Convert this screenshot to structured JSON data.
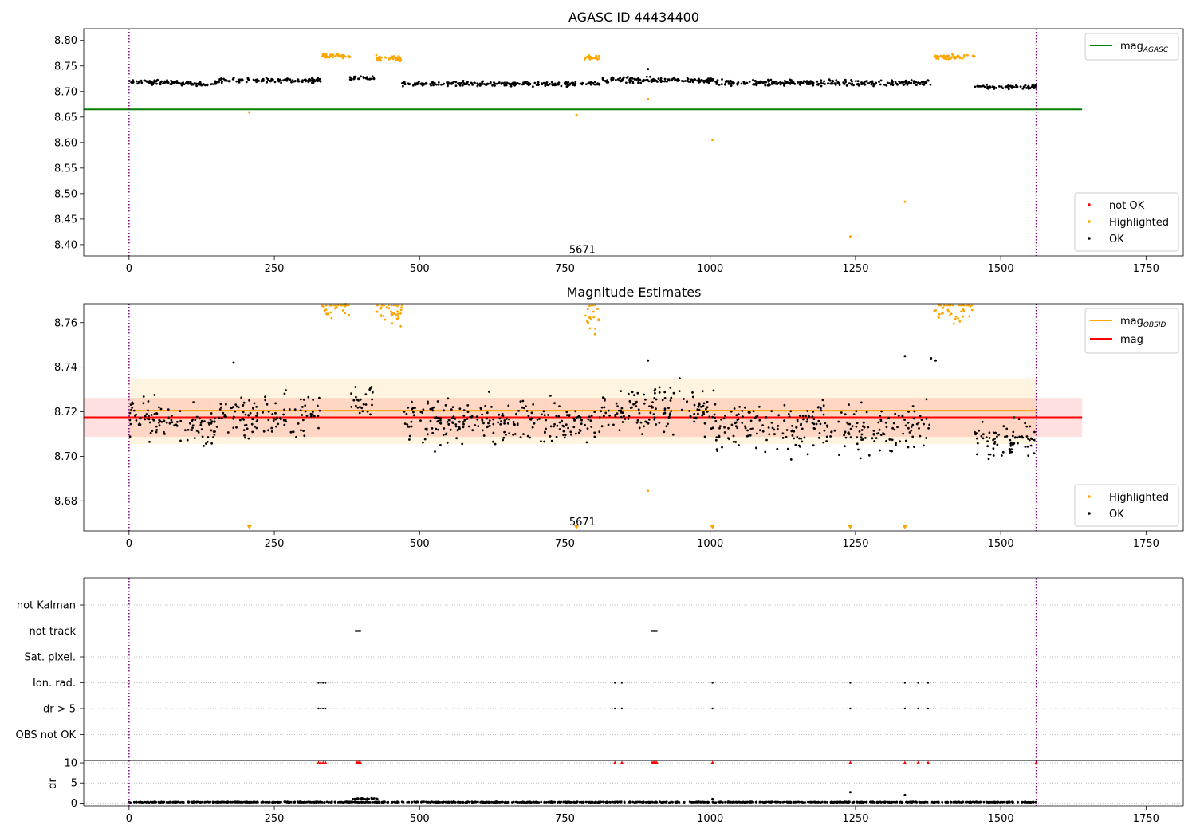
{
  "figure": {
    "background": "#ffffff"
  },
  "chart_data": [
    {
      "id": "top",
      "type": "scatter",
      "title": "AGASC ID 44434400",
      "xlim": [
        -78,
        1814
      ],
      "ylim": [
        8.378,
        8.823
      ],
      "xticks": [
        0,
        250,
        500,
        750,
        1000,
        1250,
        1500,
        1750
      ],
      "yticks": [
        8.4,
        8.45,
        8.5,
        8.55,
        8.6,
        8.65,
        8.7,
        8.75,
        8.8
      ],
      "ytick_format": 2,
      "vlines": [
        0,
        1561
      ],
      "vline_color": "#800080",
      "obs_annotation": {
        "text": "5671",
        "x": 780,
        "y": 8.39
      },
      "hlines": [
        {
          "name": "mag_AGASC",
          "y": 8.665,
          "x0": -78,
          "x1": 1640,
          "color": "#008000"
        }
      ],
      "legend_lines": {
        "position": "top-right",
        "entries": [
          {
            "label": "mag",
            "sub": "AGASC",
            "color": "#008000"
          }
        ]
      },
      "legend_points": {
        "position": "lower-right",
        "entries": [
          {
            "label": "not OK",
            "color": "#ff0000"
          },
          {
            "label": "Highlighted",
            "color": "#ffa500"
          },
          {
            "label": "OK",
            "color": "#000000"
          }
        ]
      },
      "series": [
        {
          "name": "OK",
          "color": "#000000",
          "segments": [
            {
              "x0": 0,
              "x1": 152,
              "n": 110,
              "base": 8.719,
              "spread": 0.004,
              "trend": -0.004
            },
            {
              "x0": 154,
              "x1": 330,
              "n": 120,
              "base": 8.722,
              "spread": 0.004
            },
            {
              "x0": 380,
              "x1": 425,
              "n": 25,
              "base": 8.727,
              "spread": 0.004
            },
            {
              "x0": 470,
              "x1": 770,
              "n": 220,
              "base": 8.715,
              "spread": 0.004
            },
            {
              "x0": 772,
              "x1": 810,
              "n": 22,
              "base": 8.715,
              "spread": 0.003
            },
            {
              "x0": 812,
              "x1": 1010,
              "n": 150,
              "base": 8.722,
              "spread": 0.005
            },
            {
              "x0": 1010,
              "x1": 1380,
              "n": 260,
              "base": 8.717,
              "spread": 0.005
            },
            {
              "x0": 1455,
              "x1": 1561,
              "n": 75,
              "base": 8.709,
              "spread": 0.004
            }
          ],
          "points": [
            [
              893,
              8.744
            ]
          ]
        },
        {
          "name": "Highlighted",
          "color": "#ffa500",
          "segments": [
            {
              "x0": 332,
              "x1": 380,
              "n": 45,
              "base": 8.77,
              "spread": 0.004
            },
            {
              "x0": 425,
              "x1": 470,
              "n": 40,
              "base": 8.765,
              "spread": 0.005
            },
            {
              "x0": 784,
              "x1": 810,
              "n": 22,
              "base": 8.766,
              "spread": 0.005
            },
            {
              "x0": 1385,
              "x1": 1455,
              "n": 55,
              "base": 8.768,
              "spread": 0.004
            }
          ],
          "points": [
            [
              207,
              8.659
            ],
            [
              770,
              8.654
            ],
            [
              893,
              8.685
            ],
            [
              1004,
              8.605
            ],
            [
              1241,
              8.416
            ],
            [
              1335,
              8.484
            ]
          ]
        }
      ]
    },
    {
      "id": "mid",
      "type": "scatter",
      "title": "Magnitude Estimates",
      "xlim": [
        -78,
        1814
      ],
      "ylim": [
        8.6665,
        8.7685
      ],
      "xticks": [
        0,
        250,
        500,
        750,
        1000,
        1250,
        1500,
        1750
      ],
      "yticks": [
        8.68,
        8.7,
        8.72,
        8.74,
        8.76
      ],
      "ytick_format": 2,
      "vlines": [
        0,
        1561
      ],
      "vline_color": "#800080",
      "obs_annotation": {
        "text": "5671",
        "x": 780,
        "y": 8.6705
      },
      "bands": [
        {
          "x0": 0,
          "x1": 1561,
          "y0": 8.7055,
          "y1": 8.735,
          "color": "#ffa500",
          "opacity": 0.12
        },
        {
          "x0": -78,
          "x1": 1640,
          "y0": 8.7087,
          "y1": 8.7262,
          "color": "#ff0000",
          "opacity": 0.12
        }
      ],
      "hlines": [
        {
          "name": "mag_OBSID",
          "y": 8.7205,
          "x0": 0,
          "x1": 1561,
          "color": "#ffa500"
        },
        {
          "name": "mag",
          "y": 8.7175,
          "x0": -78,
          "x1": 1640,
          "color": "#ff0000"
        }
      ],
      "legend_lines": {
        "position": "top-right",
        "entries": [
          {
            "label": "mag",
            "sub": "OBSID",
            "color": "#ffa500"
          },
          {
            "label": "mag",
            "sub": "",
            "color": "#ff0000"
          }
        ]
      },
      "legend_points": {
        "position": "lower-right",
        "entries": [
          {
            "label": "Highlighted",
            "color": "#ffa500"
          },
          {
            "label": "OK",
            "color": "#000000"
          }
        ]
      },
      "series": [
        {
          "name": "OK",
          "color": "#000000",
          "segments": [
            {
              "x0": 0,
              "x1": 152,
              "n": 110,
              "base": 8.718,
              "spread": 0.007,
              "trend": -0.006
            },
            {
              "x0": 154,
              "x1": 330,
              "n": 120,
              "base": 8.719,
              "spread": 0.008
            },
            {
              "x0": 380,
              "x1": 425,
              "n": 25,
              "base": 8.725,
              "spread": 0.007
            },
            {
              "x0": 470,
              "x1": 770,
              "n": 220,
              "base": 8.715,
              "spread": 0.009
            },
            {
              "x0": 772,
              "x1": 810,
              "n": 22,
              "base": 8.714,
              "spread": 0.007
            },
            {
              "x0": 812,
              "x1": 1010,
              "n": 150,
              "base": 8.721,
              "spread": 0.009
            },
            {
              "x0": 1010,
              "x1": 1380,
              "n": 260,
              "base": 8.713,
              "spread": 0.01
            },
            {
              "x0": 1455,
              "x1": 1561,
              "n": 75,
              "base": 8.707,
              "spread": 0.007
            }
          ],
          "points": [
            [
              893,
              8.743
            ],
            [
              1335,
              8.745
            ],
            [
              1380,
              8.744
            ],
            [
              1388,
              8.743
            ],
            [
              180,
              8.742
            ]
          ]
        },
        {
          "name": "Highlighted",
          "color": "#ffa500",
          "segments": [
            {
              "x0": 332,
              "x1": 380,
              "n": 45,
              "base": 8.769,
              "spread": 0.006
            },
            {
              "x0": 425,
              "x1": 470,
              "n": 40,
              "base": 8.766,
              "spread": 0.008
            },
            {
              "x0": 784,
              "x1": 810,
              "n": 22,
              "base": 8.764,
              "spread": 0.008
            },
            {
              "x0": 1385,
              "x1": 1455,
              "n": 55,
              "base": 8.768,
              "spread": 0.007
            }
          ],
          "points": [
            [
              893,
              8.6845
            ]
          ]
        }
      ],
      "out_of_range_markers": {
        "color": "#ffa500",
        "x": [
          207,
          770,
          1004,
          1241,
          1335
        ]
      }
    },
    {
      "id": "flags",
      "type": "scatter",
      "xlim": [
        -78,
        1814
      ],
      "xticks": [
        0,
        250,
        500,
        750,
        1000,
        1250,
        1500,
        1750
      ],
      "vlines": [
        0,
        1561
      ],
      "vline_color": "#800080",
      "categories": [
        "not Kalman",
        "not track",
        "Sat. pixel.",
        "Ion. rad.",
        "dr > 5",
        "OBS not OK"
      ],
      "flags": [
        {
          "category": "not track",
          "x": [
            390,
            392,
            394,
            396,
            398,
            900,
            902,
            904,
            906,
            908
          ]
        },
        {
          "category": "Ion. rad.",
          "x": [
            326,
            330,
            334,
            338,
            836,
            848,
            1004,
            1241,
            1335,
            1358,
            1375
          ]
        },
        {
          "category": "dr > 5",
          "x": [
            326,
            330,
            334,
            338,
            836,
            848,
            1004,
            1241,
            1335,
            1358,
            1375
          ]
        }
      ]
    },
    {
      "id": "dr",
      "type": "scatter",
      "ylabel": "dr",
      "xlim": [
        -78,
        1814
      ],
      "ylim": [
        -0.7,
        10.6
      ],
      "xticks": [
        0,
        250,
        500,
        750,
        1000,
        1250,
        1500,
        1750
      ],
      "yticks": [
        0,
        5,
        10
      ],
      "ytick_format": 0,
      "vlines": [
        0,
        1561
      ],
      "vline_color": "#800080",
      "clipped_markers": {
        "y": 10,
        "color": "#ff0000",
        "x": [
          326,
          330,
          334,
          338,
          392,
          394,
          396,
          398,
          836,
          848,
          900,
          902,
          904,
          906,
          908,
          1004,
          1241,
          1335,
          1358,
          1375,
          1561
        ]
      },
      "series": [
        {
          "name": "dr",
          "color": "#000000",
          "segments": [
            {
              "x0": 0,
              "x1": 1561,
              "n": 1100,
              "base": 0.25,
              "spread": 0.1
            },
            {
              "x0": 385,
              "x1": 430,
              "n": 30,
              "base": 1.1,
              "spread": 0.15
            }
          ],
          "points": [
            [
              1241,
              2.7
            ],
            [
              1335,
              2.0
            ],
            [
              1004,
              1.0
            ]
          ]
        }
      ]
    }
  ]
}
